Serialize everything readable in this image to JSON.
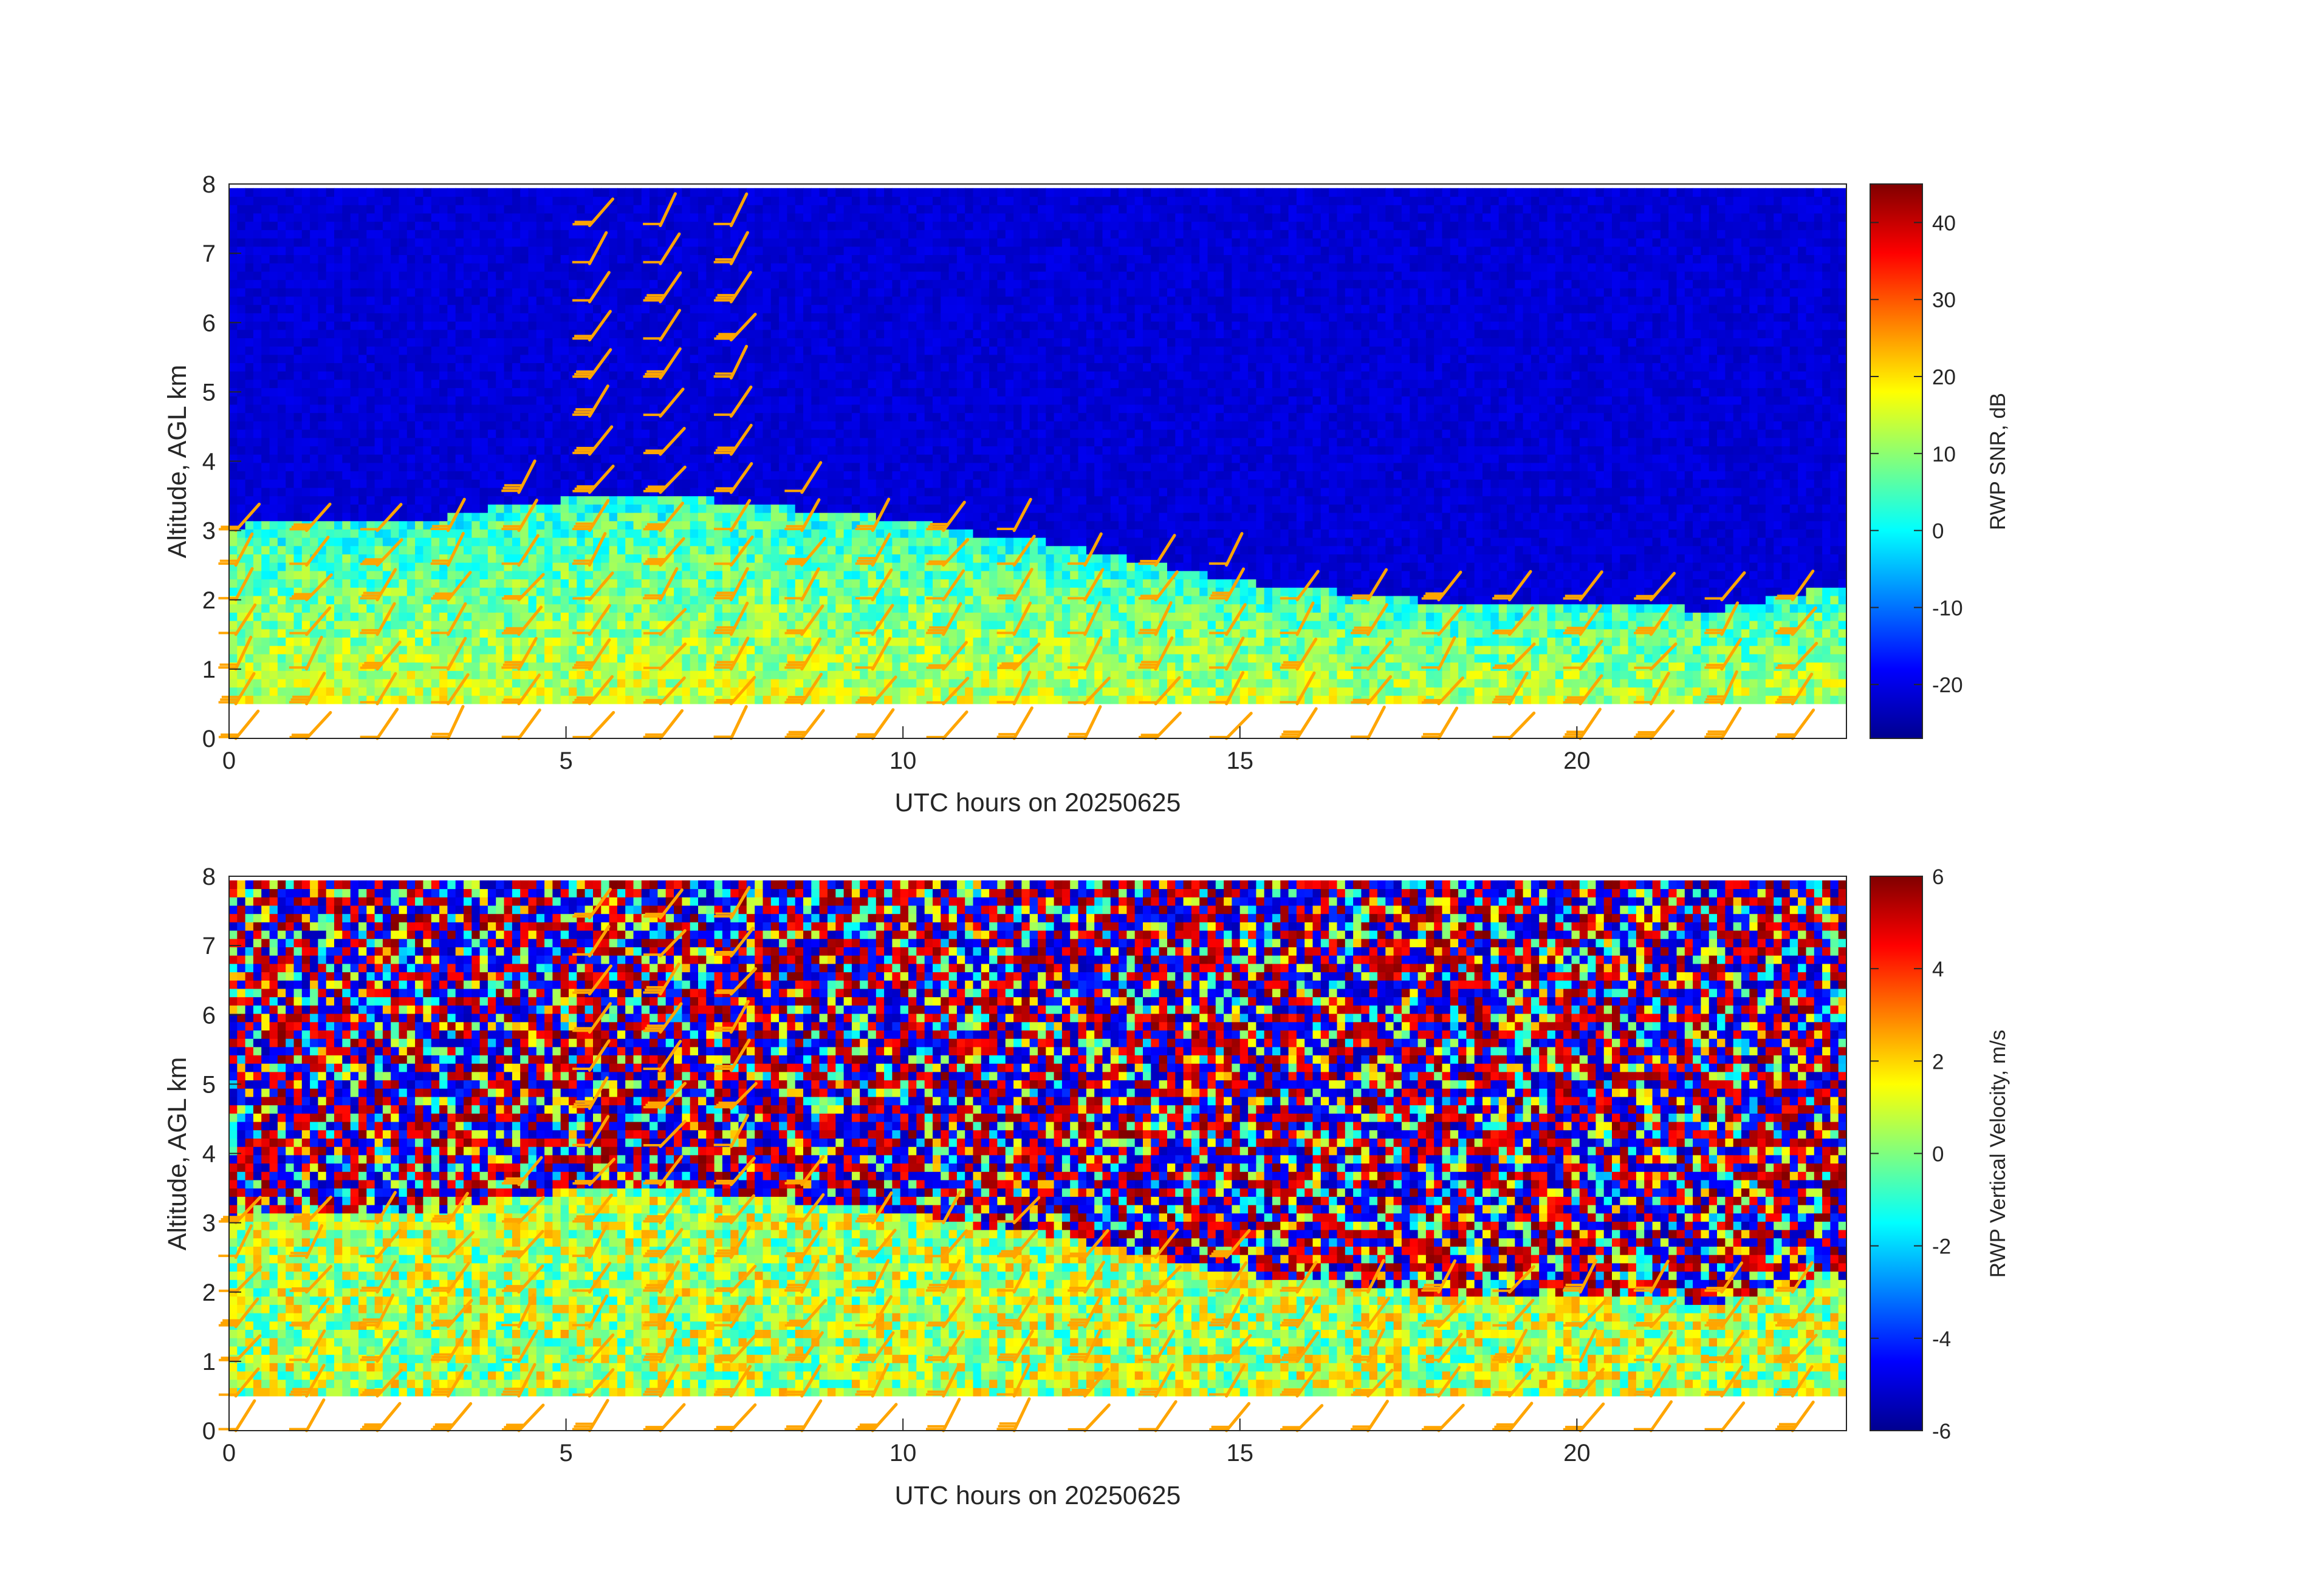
{
  "chart_data": [
    {
      "type": "heatmap",
      "panel": "top",
      "xlabel": "UTC hours on 20250625",
      "ylabel": "Altitude, AGL km",
      "xlim": [
        0,
        24
      ],
      "ylim": [
        0,
        8
      ],
      "x_ticks": [
        "0",
        "5",
        "10",
        "15",
        "20"
      ],
      "y_ticks": [
        "0",
        "1",
        "2",
        "3",
        "4",
        "5",
        "6",
        "7",
        "8"
      ],
      "colorbar": {
        "label": "RWP SNR, dB",
        "range": [
          -27,
          45
        ],
        "ticks": [
          "-20",
          "-10",
          "0",
          "10",
          "20",
          "30",
          "40"
        ],
        "colormap": "jet"
      },
      "data_top_km": 7.9,
      "data_bottom_km": 0.5,
      "boundary_layer_top_km": [
        [
          0,
          3.0
        ],
        [
          1,
          3.1
        ],
        [
          2,
          3.1
        ],
        [
          3,
          3.1
        ],
        [
          4,
          3.3
        ],
        [
          5,
          3.4
        ],
        [
          6,
          3.5
        ],
        [
          7,
          3.4
        ],
        [
          8,
          3.3
        ],
        [
          9,
          3.2
        ],
        [
          10,
          3.1
        ],
        [
          11,
          2.9
        ],
        [
          12,
          2.8
        ],
        [
          13,
          2.6
        ],
        [
          14,
          2.4
        ],
        [
          15,
          2.2
        ],
        [
          16,
          2.1
        ],
        [
          17,
          2.0
        ],
        [
          18,
          1.9
        ],
        [
          19,
          1.9
        ],
        [
          20,
          1.85
        ],
        [
          21,
          1.85
        ],
        [
          22,
          1.8
        ],
        [
          23,
          2.0
        ],
        [
          24,
          2.2
        ]
      ],
      "barb_color": "#ffa500"
    },
    {
      "type": "heatmap",
      "panel": "bottom",
      "xlabel": "UTC hours on 20250625",
      "ylabel": "Altitude, AGL km",
      "xlim": [
        0,
        24
      ],
      "ylim": [
        0,
        8
      ],
      "x_ticks": [
        "0",
        "5",
        "10",
        "15",
        "20"
      ],
      "y_ticks": [
        "0",
        "1",
        "2",
        "3",
        "4",
        "5",
        "6",
        "7",
        "8"
      ],
      "colorbar": {
        "label": "RWP Vertical Velocity, m/s",
        "range": [
          -6,
          6
        ],
        "ticks": [
          "-6",
          "-4",
          "-2",
          "0",
          "2",
          "4",
          "6"
        ],
        "colormap": "jet"
      },
      "data_top_km": 7.9,
      "data_bottom_km": 0.5,
      "barb_color": "#ffa500"
    }
  ],
  "panels": [
    {
      "xlabel": "UTC hours on 20250625",
      "ylabel": "Altitude, AGL km",
      "cbar_label": "RWP SNR, dB",
      "xticks": [
        "0",
        "5",
        "10",
        "15",
        "20"
      ],
      "yticks": [
        "0",
        "1",
        "2",
        "3",
        "4",
        "5",
        "6",
        "7",
        "8"
      ],
      "cticks": [
        "-20",
        "-10",
        "0",
        "10",
        "20",
        "30",
        "40"
      ]
    },
    {
      "xlabel": "UTC hours on 20250625",
      "ylabel": "Altitude, AGL km",
      "cbar_label": "RWP Vertical Velocity, m/s",
      "xticks": [
        "0",
        "5",
        "10",
        "15",
        "20"
      ],
      "yticks": [
        "0",
        "1",
        "2",
        "3",
        "4",
        "5",
        "6",
        "7",
        "8"
      ],
      "cticks": [
        "-6",
        "-4",
        "-2",
        "0",
        "2",
        "4",
        "6"
      ]
    }
  ]
}
